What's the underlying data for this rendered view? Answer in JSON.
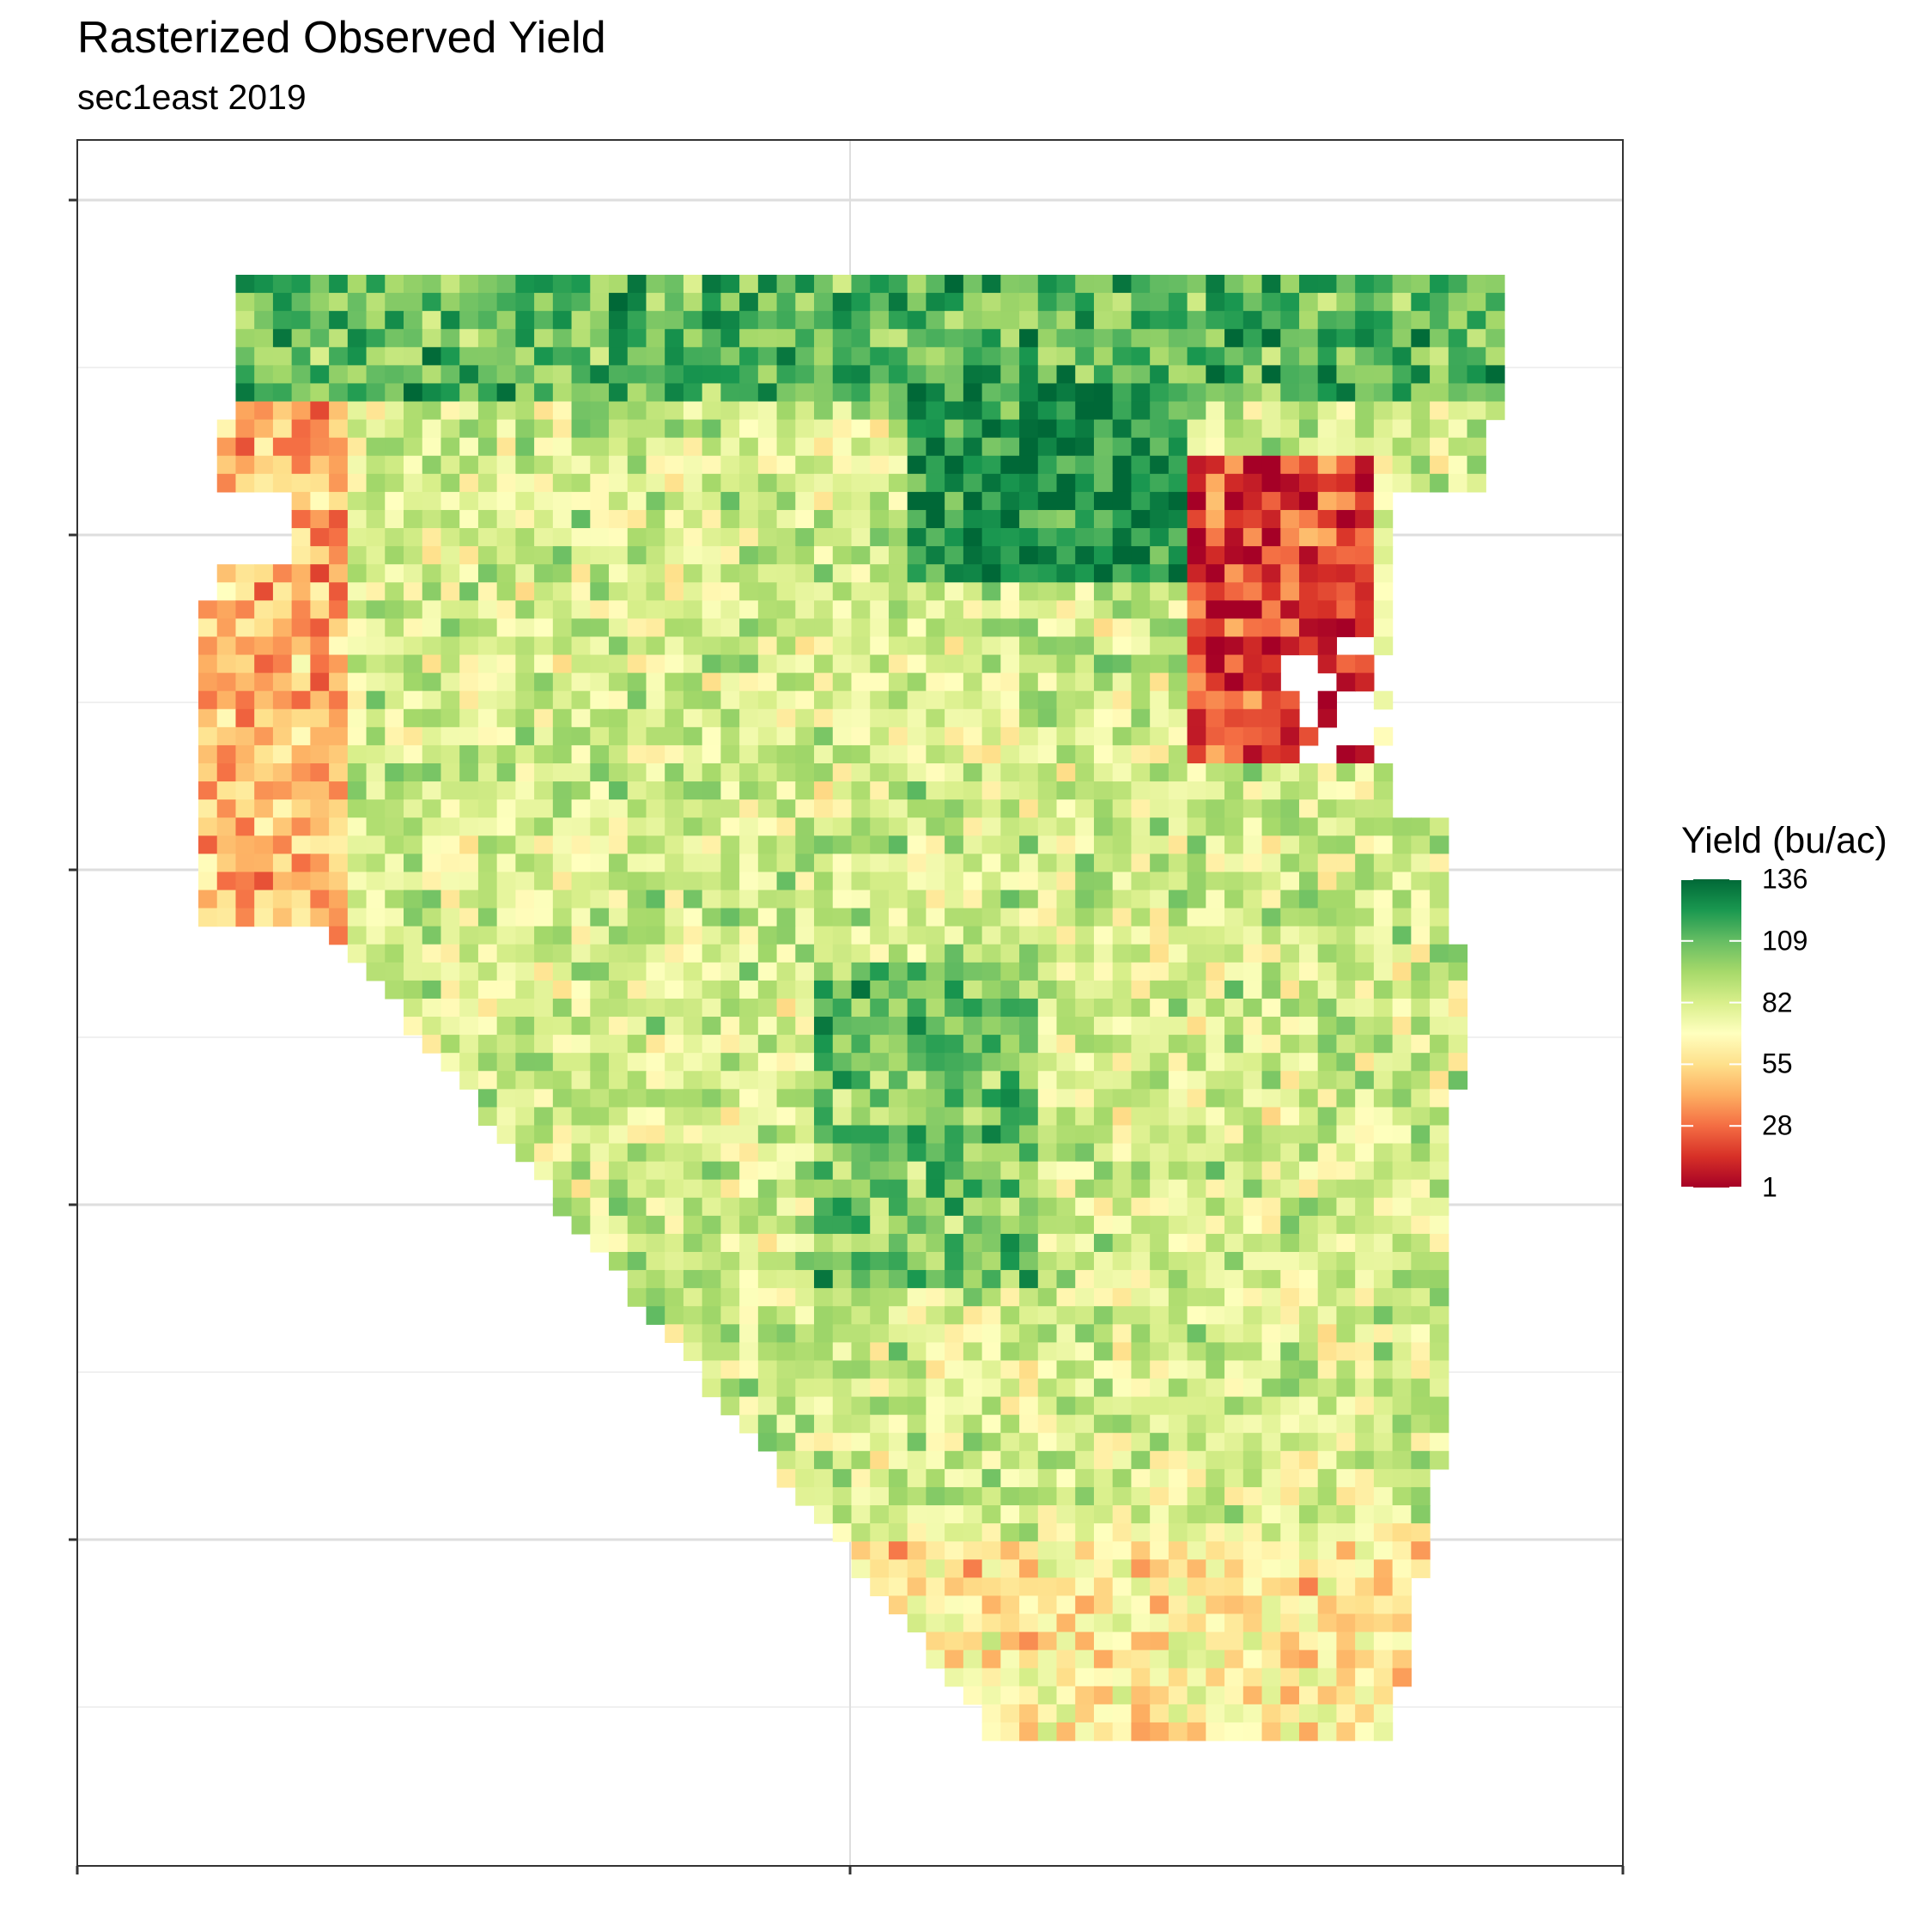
{
  "chart_data": {
    "type": "heatmap",
    "title": "Rasterized Observed Yield",
    "subtitle": "sec1east 2019",
    "xlabel": "",
    "ylabel": "",
    "legend": {
      "title": "Yield (bu/ac)",
      "position": "right",
      "breaks": [
        136,
        109,
        82,
        55,
        28,
        1
      ],
      "range": [
        1,
        136
      ],
      "palette": [
        "#a50026",
        "#d73027",
        "#f46d43",
        "#fdae61",
        "#fee08b",
        "#ffffbf",
        "#d9ef8b",
        "#a6d96a",
        "#66bd63",
        "#1a9850",
        "#006837"
      ]
    },
    "grid": true,
    "x_ticks": 3,
    "y_ticks": 5,
    "raster_columns": 70,
    "raster_rows": 81,
    "field_shape": {
      "row_start": 0,
      "segments": [
        {
          "rows": [
            0,
            7
          ],
          "col_start": 2,
          "col_end": 69
        },
        {
          "rows": [
            8,
            17
          ],
          "col_start": 1,
          "col_end": 68
        },
        {
          "rows": [
            18,
            29
          ],
          "col_start": 0,
          "col_end": 63
        },
        {
          "rows": [
            30,
            36
          ],
          "col_start": 0,
          "col_end": 66
        },
        {
          "rows": [
            37,
            44
          ],
          "col_start": 8,
          "col_end": 67
        },
        {
          "rows": [
            45,
            80
          ],
          "col_start": 12,
          "col_end": 66
        }
      ],
      "diagonal_cut": {
        "from_row": 36,
        "to_row": 80,
        "col_at_from": 7,
        "col_at_to": 42
      }
    },
    "zones": [
      {
        "area": "north band",
        "rows": [
          0,
          6
        ],
        "level": "high",
        "yield_approx": 110
      },
      {
        "area": "north-center core",
        "rows": [
          6,
          16
        ],
        "cols": [
          38,
          52
        ],
        "level": "very high",
        "yield_approx": 125
      },
      {
        "area": "west edge",
        "rows": [
          7,
          36
        ],
        "cols": [
          0,
          7
        ],
        "level": "low",
        "yield_approx": 45
      },
      {
        "area": "east notch",
        "rows": [
          10,
          26
        ],
        "cols": [
          53,
          62
        ],
        "level": "very low",
        "yield_approx": 20
      },
      {
        "area": "center ridge",
        "rows": [
          38,
          55
        ],
        "cols": [
          33,
          44
        ],
        "level": "high",
        "yield_approx": 105
      },
      {
        "area": "south border",
        "rows": [
          70,
          80
        ],
        "cols": [
          20,
          66
        ],
        "level": "mixed low",
        "yield_approx": 60
      },
      {
        "area": "interior",
        "level": "medium",
        "yield_approx": 82
      }
    ]
  }
}
